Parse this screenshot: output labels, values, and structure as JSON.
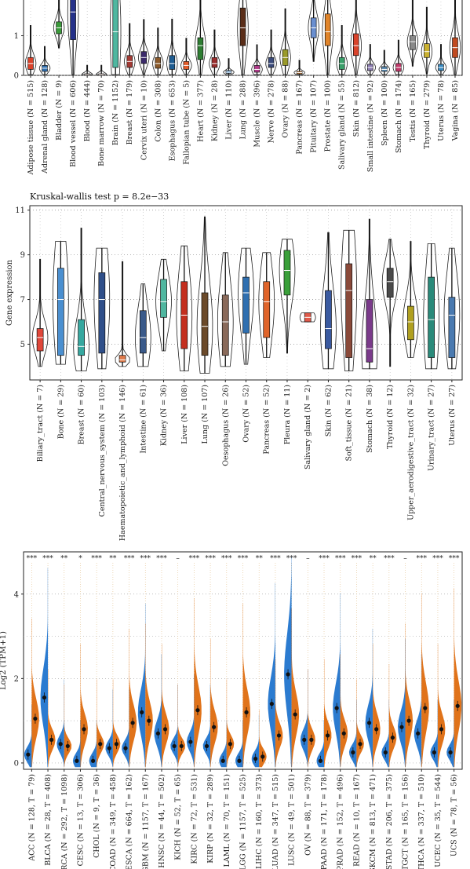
{
  "chart_data": [
    {
      "type": "violin-box",
      "title": "",
      "ylabel": "",
      "ylim": [
        0,
        2.1
      ],
      "yticks": [
        "0",
        "1",
        "2"
      ],
      "grid": true,
      "categories": [
        "Adipose tissue (N = 515)",
        "Adrenal gland (N = 128)",
        "Bladder (N = 9)",
        "Blood vessel (N = 606)",
        "Blood (N = 444)",
        "Bone marrow (N = 70)",
        "Brain (N = 1152)",
        "Breast (N = 179)",
        "Cervix uteri (N = 10)",
        "Colon (N = 308)",
        "Esophagus (N = 653)",
        "Fallopian tube (N = 5)",
        "Heart (N = 377)",
        "Kidney (N = 28)",
        "Liver (N = 110)",
        "Lung (N = 288)",
        "Muscle (N = 396)",
        "Nerve (N = 278)",
        "Ovary (N = 88)",
        "Pancreas (N = 167)",
        "Pituitary (N = 107)",
        "Prostate (N = 100)",
        "Salivary gland (N = 55)",
        "Skin (N = 812)",
        "Small intestine (N = 92)",
        "Spleen (N = 100)",
        "Stomach (N = 174)",
        "Testis (N = 165)",
        "Thyroid (N = 279)",
        "Uterus (N = 78)",
        "Vagina (N = 85)"
      ],
      "colors": [
        "#d9432b",
        "#2f6fb0",
        "#3a9a3a",
        "#25318a",
        "#6b3a1f",
        "#d99a8a",
        "#4fb7a0",
        "#a33b35",
        "#3b2a6b",
        "#8b5a2b",
        "#1f5d92",
        "#e25b2a",
        "#2e7d32",
        "#9a2e2e",
        "#6aa0d0",
        "#5a2d18",
        "#b03a8a",
        "#3a4a7a",
        "#9a9a2a",
        "#e0893a",
        "#6a8fd0",
        "#e0842a",
        "#3aa06a",
        "#d9432b",
        "#8a7ab0",
        "#5a8ab0",
        "#c03a6a",
        "#8a8a8a",
        "#c9b030",
        "#3a8ac0",
        "#c04a20"
      ],
      "medians": [
        0.3,
        0.18,
        1.2,
        1.6,
        0.02,
        0.02,
        1.1,
        0.35,
        0.45,
        0.3,
        0.3,
        0.25,
        0.75,
        0.3,
        0.08,
        1.2,
        0.15,
        0.3,
        0.45,
        0.07,
        1.2,
        1.1,
        0.3,
        0.75,
        0.2,
        0.15,
        0.2,
        0.85,
        0.6,
        0.2,
        0.7
      ],
      "q1": [
        0.15,
        0.1,
        1.05,
        0.9,
        0.01,
        0.01,
        0.2,
        0.2,
        0.3,
        0.18,
        0.15,
        0.15,
        0.4,
        0.2,
        0.05,
        0.75,
        0.08,
        0.2,
        0.25,
        0.04,
        0.95,
        0.75,
        0.15,
        0.5,
        0.12,
        0.1,
        0.1,
        0.65,
        0.45,
        0.12,
        0.45
      ],
      "q3": [
        0.45,
        0.25,
        1.35,
        2.1,
        0.04,
        0.04,
        2.05,
        0.5,
        0.6,
        0.45,
        0.5,
        0.35,
        0.95,
        0.45,
        0.12,
        1.7,
        0.25,
        0.45,
        0.65,
        0.1,
        1.45,
        1.55,
        0.45,
        1.05,
        0.28,
        0.22,
        0.3,
        1.0,
        0.8,
        0.28,
        0.95
      ]
    },
    {
      "type": "violin-box",
      "title": "Kruskal-wallis test p = 8.2e−33",
      "ylabel": "Gene expression",
      "ylim": [
        3.4,
        11.2
      ],
      "yticks": [
        "5",
        "7",
        "9",
        "11"
      ],
      "grid": true,
      "categories": [
        "Biliary_tract (N = 7)",
        "Bone (N = 29)",
        "Breast (N = 60)",
        "Central_nervous_system (N = 103)",
        "Haematopoietic_and_lymphoid (N = 146)",
        "Intestine (N = 61)",
        "Kidney (N = 36)",
        "Liver (N = 108)",
        "Lung (N = 107)",
        "Oesophagus (N = 26)",
        "Ovary (N = 52)",
        "Pancreas (N = 52)",
        "Pleura (N = 11)",
        "Salivary gland (N = 2)",
        "Skin (N = 62)",
        "Soft_tissue (N = 21)",
        "Stomach (N = 38)",
        "Thyroid (N = 12)",
        "Upper_aerodigestive_tract (N = 32)",
        "Urinary_tract (N = 27)",
        "Uterus (N = 27)"
      ],
      "colors": [
        "#e0473a",
        "#4a8fd0",
        "#36a8a0",
        "#2f4f8a",
        "#e07a4a",
        "#3a5a8a",
        "#4fb7a0",
        "#c42f1f",
        "#6b4a2a",
        "#8a6a5a",
        "#2f6fb0",
        "#e0642a",
        "#3aa03a",
        "#e05a4a",
        "#3a5aa0",
        "#8a4a3a",
        "#7a3a8a",
        "#4a4a4a",
        "#b0a020",
        "#2a8a7a",
        "#4a7ab0"
      ],
      "medians": [
        5.3,
        7.0,
        4.9,
        7.0,
        4.3,
        5.3,
        6.9,
        6.3,
        5.8,
        6.0,
        7.3,
        6.9,
        8.3,
        6.2,
        5.7,
        7.4,
        4.8,
        7.8,
        6.0,
        6.1,
        6.3
      ],
      "q1": [
        4.7,
        4.5,
        4.5,
        4.6,
        4.2,
        4.6,
        6.2,
        4.8,
        4.5,
        4.5,
        5.5,
        5.3,
        7.2,
        6.0,
        4.8,
        4.4,
        4.2,
        7.1,
        5.2,
        4.4,
        4.4
      ],
      "q3": [
        5.7,
        8.4,
        6.1,
        8.2,
        4.5,
        6.5,
        7.9,
        7.8,
        7.3,
        7.2,
        8.0,
        7.8,
        9.2,
        6.4,
        7.4,
        8.6,
        7.0,
        8.4,
        6.7,
        8.0,
        7.1
      ],
      "vmin": [
        4.0,
        4.1,
        3.8,
        3.9,
        4.0,
        4.0,
        4.7,
        3.8,
        3.7,
        4.0,
        4.1,
        4.4,
        4.6,
        6.0,
        3.9,
        3.8,
        3.9,
        4.0,
        4.4,
        3.9,
        3.9
      ],
      "vmax": [
        8.8,
        9.6,
        10.2,
        9.3,
        8.7,
        7.7,
        8.8,
        9.4,
        10.7,
        9.1,
        9.3,
        9.1,
        9.7,
        6.4,
        10.0,
        10.1,
        10.6,
        9.7,
        9.6,
        9.5,
        9.3
      ]
    },
    {
      "type": "split-violin",
      "title": "",
      "ylabel": "Log2 (TPM+1)",
      "ylim": [
        -0.15,
        5.0
      ],
      "yticks": [
        "0",
        "2",
        "4"
      ],
      "grid": true,
      "series": [
        {
          "name": "",
          "color": "#2b7bd0",
          "values": [
            0.2,
            1.55,
            0.45,
            0.05,
            0.05,
            0.35,
            0.35,
            1.2,
            0.7,
            0.4,
            0.5,
            0.4,
            0.05,
            0.05,
            0.1,
            1.4,
            2.1,
            0.55,
            0.05,
            1.3,
            0.25,
            0.95,
            0.25,
            0.85,
            0.7,
            0.25,
            0.25
          ]
        },
        {
          "name": "",
          "color": "#e0731a",
          "values": [
            1.05,
            0.55,
            0.4,
            0.8,
            0.45,
            0.45,
            0.95,
            1.0,
            0.8,
            0.4,
            1.25,
            0.85,
            0.45,
            1.2,
            0.15,
            0.65,
            1.15,
            0.55,
            0.65,
            0.7,
            0.45,
            0.8,
            0.6,
            1.0,
            1.3,
            0.8,
            1.35
          ]
        }
      ],
      "categories": [
        "ACC (N = 128, T = 79)",
        "BLCA (N = 28, T = 408)",
        "BRCA (N = 292, T = 1098)",
        "CESC (N = 13, T = 306)",
        "CHOL (N = 9, T = 36)",
        "COAD (N = 349, T = 458)",
        "ESCA (N = 664, T = 162)",
        "GBM (N = 1157, T = 167)",
        "HNSC (N = 44, T = 502)",
        "KICH (N = 52, T = 65)",
        "KIRC (N = 72, T = 531)",
        "KIRP (N = 32, T = 289)",
        "LAML (N = 70, T = 151)",
        "LGG (N = 1157, T = 525)",
        "LIHC (N = 160, T = 373)",
        "LUAD (N = 347, T = 515)",
        "LUSC (N = 49, T = 501)",
        "OV (N = 88, T = 379)",
        "PAAD (N = 171, T = 178)",
        "PRAD (N = 152, T = 496)",
        "READ (N = 10, T = 167)",
        "SKCM (N = 813, T = 471)",
        "STAD (N = 206, T = 375)",
        "TGCT (N = 165, T = 156)",
        "THCA (N = 337, T = 510)",
        "UCEC (N = 35, T = 544)",
        "UCS (N = 78, T = 56)"
      ],
      "significance": [
        "***",
        "***",
        "**",
        "*",
        "***",
        "**",
        "***",
        "***",
        "***",
        "–",
        "***",
        "***",
        "***",
        "***",
        "**",
        "***",
        "***",
        "–",
        "***",
        "***",
        "***",
        "**",
        "***",
        "–",
        "***",
        "***",
        "***"
      ]
    }
  ]
}
